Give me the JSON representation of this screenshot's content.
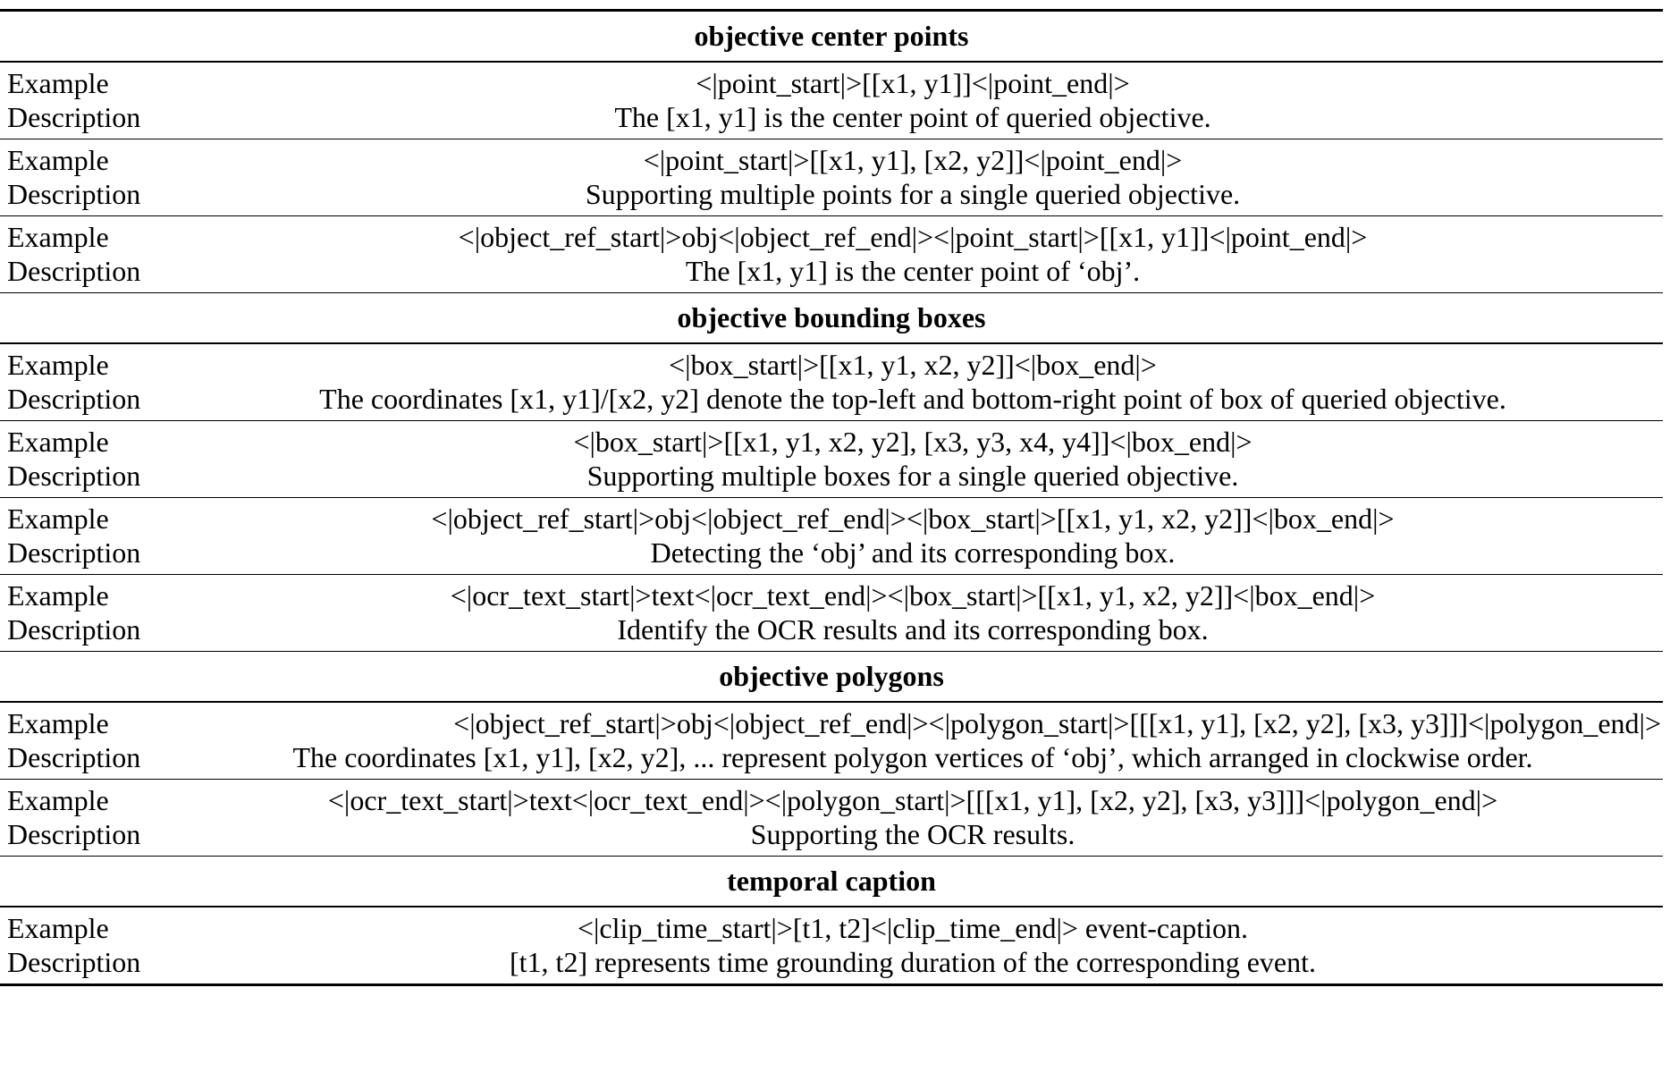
{
  "labels": {
    "example": "Example",
    "description": "Description"
  },
  "sections": [
    {
      "title": "objective center points",
      "rows": [
        {
          "example": "<|point_start|>[[x1, y1]]<|point_end|>",
          "description": "The [x1, y1] is the center point of queried objective."
        },
        {
          "example": "<|point_start|>[[x1, y1], [x2, y2]]<|point_end|>",
          "description": "Supporting multiple points for a single queried objective."
        },
        {
          "example": "<|object_ref_start|>obj<|object_ref_end|><|point_start|>[[x1, y1]]<|point_end|>",
          "description": "The [x1, y1] is the center point of ‘obj’."
        }
      ]
    },
    {
      "title": "objective bounding boxes",
      "rows": [
        {
          "example": "<|box_start|>[[x1, y1, x2, y2]]<|box_end|>",
          "description": "The coordinates [x1, y1]/[x2, y2] denote the top-left and bottom-right point of box of queried objective."
        },
        {
          "example": "<|box_start|>[[x1, y1, x2, y2], [x3, y3, x4, y4]]<|box_end|>",
          "description": "Supporting multiple boxes for a single queried objective."
        },
        {
          "example": "<|object_ref_start|>obj<|object_ref_end|><|box_start|>[[x1, y1, x2, y2]]<|box_end|>",
          "description": "Detecting the ‘obj’ and its corresponding box."
        },
        {
          "example": "<|ocr_text_start|>text<|ocr_text_end|><|box_start|>[[x1, y1, x2, y2]]<|box_end|>",
          "description": "Identify the OCR results and its corresponding box."
        }
      ]
    },
    {
      "title": "objective polygons",
      "rows": [
        {
          "example": "<|object_ref_start|>obj<|object_ref_end|><|polygon_start|>[[[x1, y1], [x2, y2], [x3, y3]]]<|polygon_end|>",
          "description": "The coordinates [x1, y1], [x2, y2], ... represent polygon vertices of ‘obj’, which arranged in clockwise order."
        },
        {
          "example": "<|ocr_text_start|>text<|ocr_text_end|><|polygon_start|>[[[x1, y1], [x2, y2], [x3, y3]]]<|polygon_end|>",
          "description": "Supporting the OCR results."
        }
      ]
    },
    {
      "title": "temporal caption",
      "rows": [
        {
          "example": "<|clip_time_start|>[t1, t2]<|clip_time_end|> event-caption.",
          "description": "[t1, t2] represents time grounding duration of the corresponding event."
        }
      ]
    }
  ]
}
